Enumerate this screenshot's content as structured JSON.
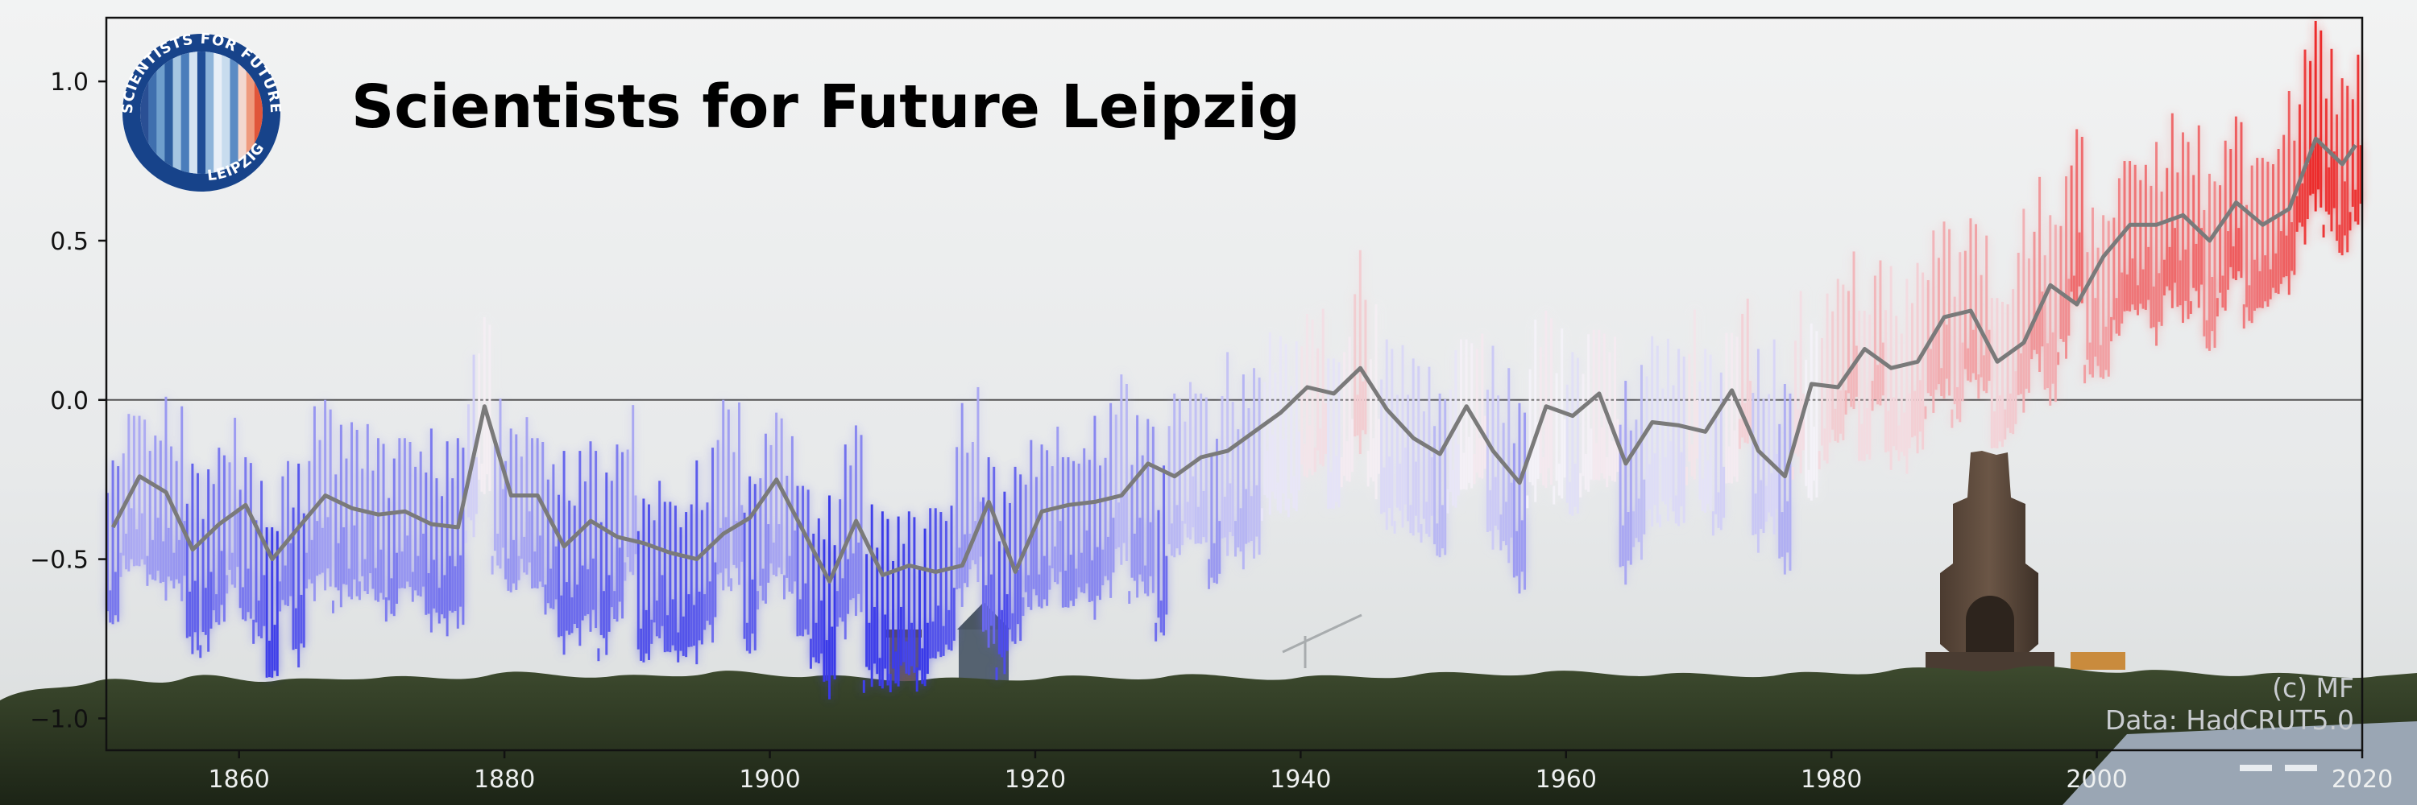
{
  "chart_data": {
    "type": "bar",
    "title": "Scientists for Future Leipzig",
    "baseline": 0.0,
    "xlim": [
      1850,
      2020
    ],
    "ylim": [
      -1.1,
      1.2
    ],
    "y_ticks": [
      1.0,
      0.5,
      0.0,
      -0.5,
      -1.0
    ],
    "y_tick_labels": [
      "1.0",
      "0.5",
      "0.0",
      "−0.5",
      "−1.0"
    ],
    "x_ticks": [
      1860,
      1880,
      1900,
      1920,
      1940,
      1960,
      1980,
      2000,
      2020
    ],
    "x_tick_labels": [
      "1860",
      "1880",
      "1900",
      "1920",
      "1940",
      "1960",
      "1980",
      "2000",
      "2020"
    ],
    "grid": false,
    "legend": "none",
    "colors": {
      "cold": "#3a3ae8",
      "neutral": "#f4f2f8",
      "warm": "#ec2c2c",
      "smooth_line": "#7a7a7a"
    },
    "annual_anomaly": {
      "years": [
        1850,
        1851,
        1852,
        1853,
        1854,
        1855,
        1856,
        1857,
        1858,
        1859,
        1860,
        1861,
        1862,
        1863,
        1864,
        1865,
        1866,
        1867,
        1868,
        1869,
        1870,
        1871,
        1872,
        1873,
        1874,
        1875,
        1876,
        1877,
        1878,
        1879,
        1880,
        1881,
        1882,
        1883,
        1884,
        1885,
        1886,
        1887,
        1888,
        1889,
        1890,
        1891,
        1892,
        1893,
        1894,
        1895,
        1896,
        1897,
        1898,
        1899,
        1900,
        1901,
        1902,
        1903,
        1904,
        1905,
        1906,
        1907,
        1908,
        1909,
        1910,
        1911,
        1912,
        1913,
        1914,
        1915,
        1916,
        1917,
        1918,
        1919,
        1920,
        1921,
        1922,
        1923,
        1924,
        1925,
        1926,
        1927,
        1928,
        1929,
        1930,
        1931,
        1932,
        1933,
        1934,
        1935,
        1936,
        1937,
        1938,
        1939,
        1940,
        1941,
        1942,
        1943,
        1944,
        1945,
        1946,
        1947,
        1948,
        1949,
        1950,
        1951,
        1952,
        1953,
        1954,
        1955,
        1956,
        1957,
        1958,
        1959,
        1960,
        1961,
        1962,
        1963,
        1964,
        1965,
        1966,
        1967,
        1968,
        1969,
        1970,
        1971,
        1972,
        1973,
        1974,
        1975,
        1976,
        1977,
        1978,
        1979,
        1980,
        1981,
        1982,
        1983,
        1984,
        1985,
        1986,
        1987,
        1988,
        1989,
        1990,
        1991,
        1992,
        1993,
        1994,
        1995,
        1996,
        1997,
        1998,
        1999,
        2000,
        2001,
        2002,
        2003,
        2004,
        2005,
        2006,
        2007,
        2008,
        2009,
        2010,
        2011,
        2012,
        2013,
        2014,
        2015,
        2016,
        2017,
        2018,
        2019
      ],
      "values": [
        -0.4,
        -0.24,
        -0.23,
        -0.28,
        -0.29,
        -0.3,
        -0.47,
        -0.47,
        -0.39,
        -0.28,
        -0.39,
        -0.45,
        -0.58,
        -0.36,
        -0.5,
        -0.3,
        -0.27,
        -0.33,
        -0.31,
        -0.3,
        -0.33,
        -0.38,
        -0.3,
        -0.33,
        -0.39,
        -0.41,
        -0.39,
        -0.11,
        0.02,
        -0.22,
        -0.3,
        -0.25,
        -0.3,
        -0.37,
        -0.46,
        -0.44,
        -0.4,
        -0.48,
        -0.38,
        -0.24,
        -0.52,
        -0.45,
        -0.5,
        -0.52,
        -0.49,
        -0.43,
        -0.27,
        -0.26,
        -0.48,
        -0.33,
        -0.25,
        -0.31,
        -0.45,
        -0.54,
        -0.6,
        -0.42,
        -0.35,
        -0.58,
        -0.59,
        -0.59,
        -0.56,
        -0.6,
        -0.52,
        -0.5,
        -0.31,
        -0.24,
        -0.45,
        -0.54,
        -0.45,
        -0.35,
        -0.35,
        -0.28,
        -0.36,
        -0.32,
        -0.35,
        -0.29,
        -0.19,
        -0.3,
        -0.3,
        -0.43,
        -0.19,
        -0.14,
        -0.16,
        -0.29,
        -0.15,
        -0.2,
        -0.17,
        -0.04,
        -0.04,
        -0.04,
        0.06,
        0.09,
        -0.05,
        0.03,
        0.17,
        0.02,
        -0.08,
        -0.08,
        -0.11,
        -0.12,
        -0.19,
        -0.04,
        0.01,
        0.04,
        -0.13,
        -0.18,
        -0.28,
        0.0,
        0.04,
        0.0,
        -0.06,
        0.01,
        0.04,
        0.03,
        -0.24,
        -0.17,
        -0.07,
        -0.06,
        -0.08,
        0.06,
        -0.05,
        -0.11,
        0.03,
        0.15,
        -0.14,
        -0.09,
        -0.22,
        0.09,
        0.0,
        0.11,
        0.17,
        0.27,
        0.1,
        0.27,
        0.12,
        0.1,
        0.16,
        0.28,
        0.32,
        0.24,
        0.36,
        0.32,
        0.14,
        0.18,
        0.3,
        0.42,
        0.31,
        0.45,
        0.61,
        0.38,
        0.37,
        0.5,
        0.57,
        0.57,
        0.51,
        0.62,
        0.57,
        0.61,
        0.47,
        0.59,
        0.68,
        0.54,
        0.58,
        0.62,
        0.67,
        0.82,
        0.92,
        0.85,
        0.77,
        0.86
      ]
    },
    "smoothed_line": {
      "years": [
        1850,
        1852,
        1854,
        1856,
        1858,
        1860,
        1862,
        1864,
        1866,
        1868,
        1870,
        1872,
        1874,
        1876,
        1878,
        1880,
        1882,
        1884,
        1886,
        1888,
        1890,
        1892,
        1894,
        1896,
        1898,
        1900,
        1902,
        1904,
        1906,
        1908,
        1910,
        1912,
        1914,
        1916,
        1918,
        1920,
        1922,
        1924,
        1926,
        1928,
        1930,
        1932,
        1934,
        1936,
        1938,
        1940,
        1942,
        1944,
        1946,
        1948,
        1950,
        1952,
        1954,
        1956,
        1958,
        1960,
        1962,
        1964,
        1966,
        1968,
        1970,
        1972,
        1974,
        1976,
        1978,
        1980,
        1982,
        1984,
        1986,
        1988,
        1990,
        1992,
        1994,
        1996,
        1998,
        2000,
        2002,
        2004,
        2006,
        2008,
        2010,
        2012,
        2014,
        2016,
        2018,
        2019
      ],
      "values": [
        -0.4,
        -0.24,
        -0.29,
        -0.47,
        -0.39,
        -0.33,
        -0.5,
        -0.4,
        -0.3,
        -0.34,
        -0.36,
        -0.35,
        -0.39,
        -0.4,
        -0.02,
        -0.3,
        -0.3,
        -0.46,
        -0.38,
        -0.43,
        -0.45,
        -0.48,
        -0.5,
        -0.42,
        -0.37,
        -0.25,
        -0.41,
        -0.57,
        -0.38,
        -0.55,
        -0.52,
        -0.54,
        -0.52,
        -0.32,
        -0.54,
        -0.35,
        -0.33,
        -0.32,
        -0.3,
        -0.2,
        -0.24,
        -0.18,
        -0.16,
        -0.1,
        -0.04,
        0.04,
        0.02,
        0.1,
        -0.03,
        -0.12,
        -0.17,
        -0.02,
        -0.16,
        -0.26,
        -0.02,
        -0.05,
        0.02,
        -0.2,
        -0.07,
        -0.08,
        -0.1,
        0.03,
        -0.16,
        -0.24,
        0.05,
        0.04,
        0.16,
        0.1,
        0.12,
        0.26,
        0.28,
        0.12,
        0.18,
        0.36,
        0.3,
        0.45,
        0.55,
        0.55,
        0.58,
        0.5,
        0.62,
        0.55,
        0.6,
        0.82,
        0.74,
        0.8
      ]
    }
  },
  "logo": {
    "text_top": "SCIENTISTS FOR FUTURE",
    "text_bottom": "LEIPZIG",
    "stripe_colors": [
      "#2a4f94",
      "#3f6fae",
      "#6f9fcc",
      "#2e5ea0",
      "#a6c6e2",
      "#4a7dbb",
      "#d4e3f1",
      "#1f4d96",
      "#8db4da",
      "#e8eff7",
      "#c8dcee",
      "#5b8bc4",
      "#f3d8cf",
      "#ef9a7d",
      "#e0553a"
    ]
  },
  "credits": {
    "line1": "(c) MF",
    "line2": "Data: HadCRUT5.0"
  }
}
